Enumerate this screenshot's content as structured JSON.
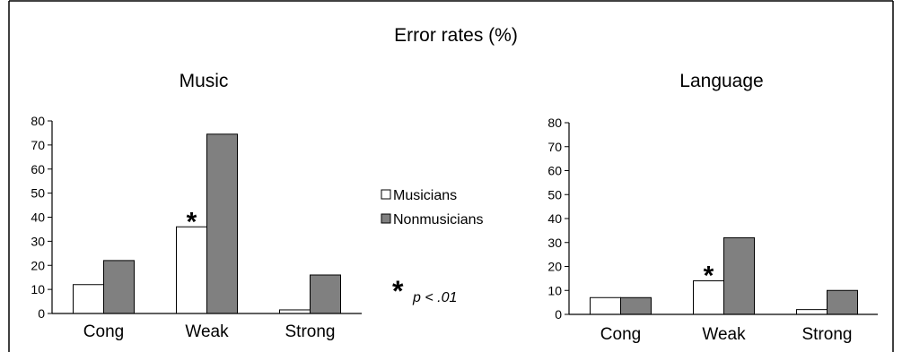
{
  "figure": {
    "title": "Error rates (%)",
    "legend": {
      "placement": "center",
      "entries": [
        "Musicians",
        "Nonmusicians"
      ]
    },
    "significance_note": {
      "symbol": "*",
      "text": "p < .01"
    }
  },
  "colors": {
    "musicians": "#ffffff",
    "nonmusicians": "#808080",
    "stroke": "#000000"
  },
  "chart_data": [
    {
      "type": "bar",
      "title": "Music",
      "categories": [
        "Cong",
        "Weak",
        "Strong"
      ],
      "series": [
        {
          "name": "Musicians",
          "values": [
            12,
            36,
            1.5
          ]
        },
        {
          "name": "Nonmusicians",
          "values": [
            22,
            74.5,
            16
          ]
        }
      ],
      "ylim": [
        0,
        80
      ],
      "yticks": [
        0,
        10,
        20,
        30,
        40,
        50,
        60,
        70,
        80
      ],
      "grid": false,
      "annotations": [
        {
          "category": "Weak",
          "label": "*"
        }
      ]
    },
    {
      "type": "bar",
      "title": "Language",
      "categories": [
        "Cong",
        "Weak",
        "Strong"
      ],
      "series": [
        {
          "name": "Musicians",
          "values": [
            7,
            14,
            2
          ]
        },
        {
          "name": "Nonmusicians",
          "values": [
            7,
            32,
            10
          ]
        }
      ],
      "ylim": [
        0,
        80
      ],
      "yticks": [
        0,
        10,
        20,
        30,
        40,
        50,
        60,
        70,
        80
      ],
      "grid": false,
      "annotations": [
        {
          "category": "Weak",
          "label": "*"
        }
      ]
    }
  ]
}
